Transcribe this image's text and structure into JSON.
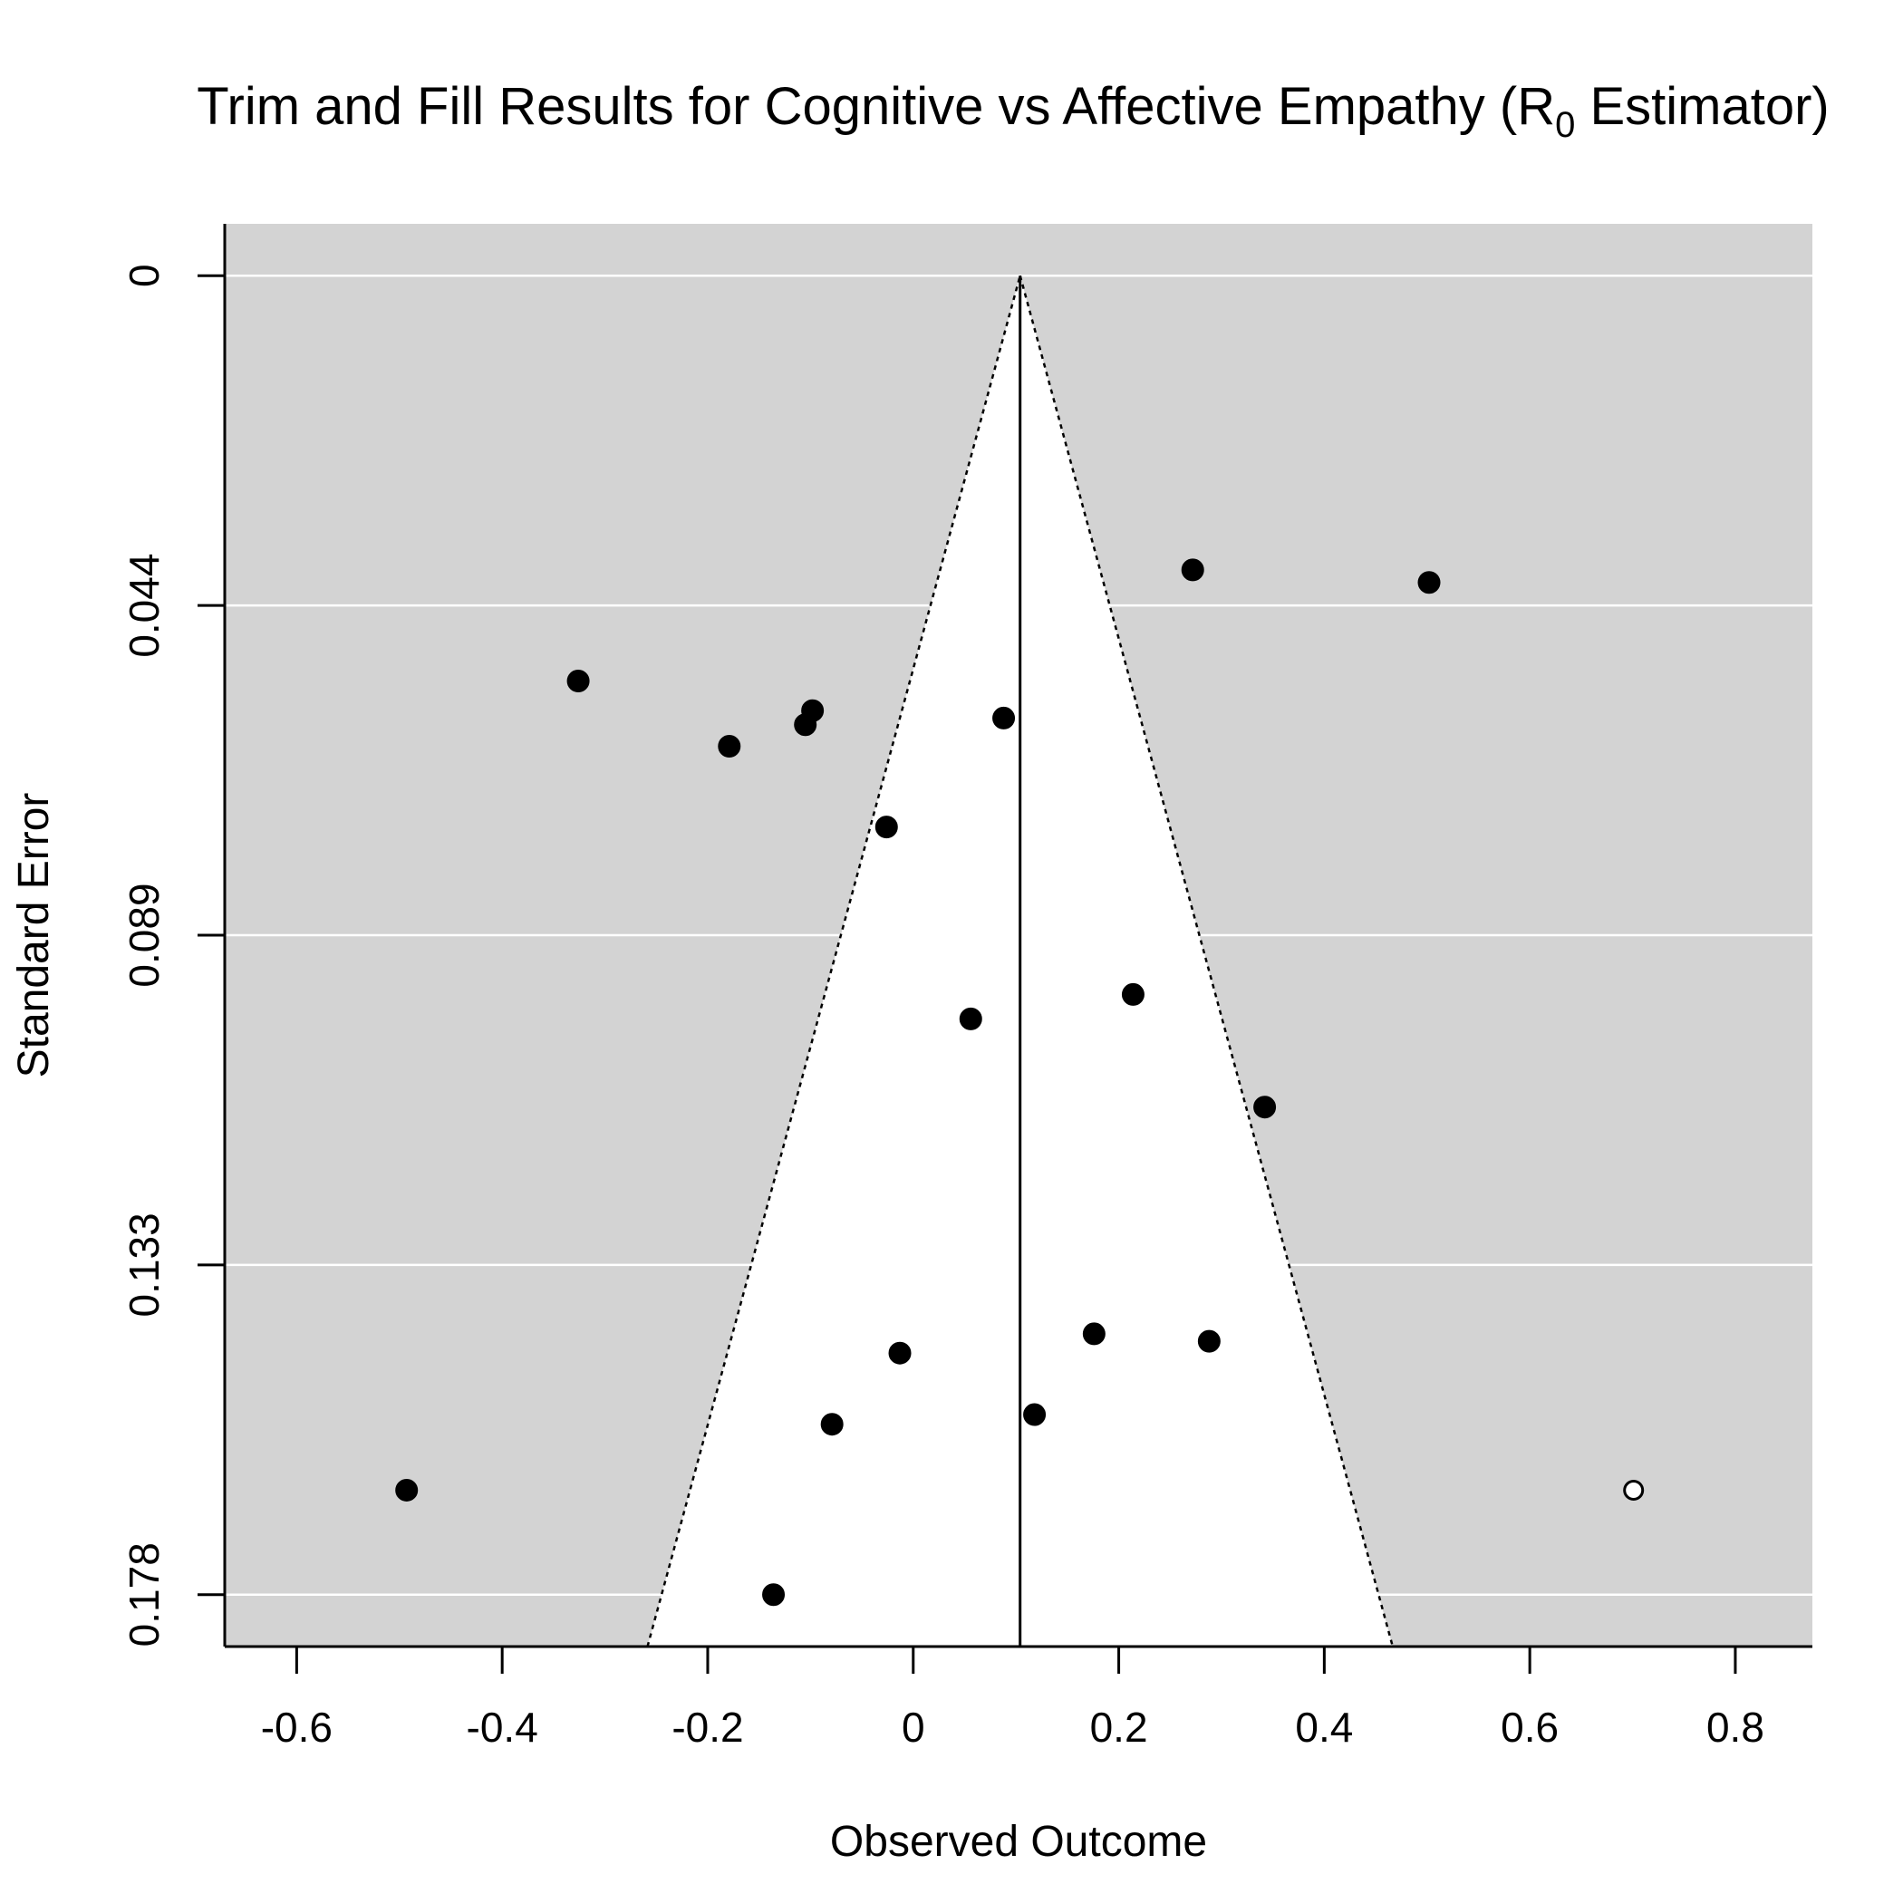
{
  "chart_data": {
    "type": "scatter",
    "title_main": "Trim and Fill Results for Cognitive vs Affective Empathy (R",
    "title_sub": "0",
    "title_end": " Estimator)",
    "xlabel": "Observed Outcome",
    "ylabel": "Standard Error",
    "xlim": [
      -0.67,
      0.875
    ],
    "ylim": [
      0.185,
      -0.007
    ],
    "x_ticks": [
      -0.6,
      -0.4,
      -0.2,
      0,
      0.2,
      0.4,
      0.6,
      0.8
    ],
    "x_tick_labels": [
      "-0.6",
      "-0.4",
      "-0.2",
      "0",
      "0.2",
      "0.4",
      "0.6",
      "0.8"
    ],
    "y_ticks": [
      0,
      0.0445,
      0.089,
      0.1335,
      0.178
    ],
    "y_tick_labels": [
      "0",
      "0.044",
      "0.089",
      "0.133",
      "0.178"
    ],
    "summary_estimate": 0.104,
    "funnel_z": 1.96,
    "grid": "horizontal",
    "colors": {
      "panel_background": "#d3d3d3",
      "funnel_region": "#ffffff",
      "gridline": "#ffffff",
      "point_fill": "#000000",
      "filled_point_fill": "#ffffff",
      "axis": "#000000"
    },
    "series": [
      {
        "marker": "filled",
        "x": [
          0.272,
          0.502,
          -0.326,
          -0.098,
          -0.105,
          -0.179,
          0.088,
          -0.026,
          0.214,
          0.056,
          0.342,
          0.176,
          0.288,
          -0.013,
          0.118,
          -0.079,
          -0.493,
          -0.136
        ],
        "y": [
          0.0397,
          0.0414,
          0.0547,
          0.0587,
          0.0606,
          0.0635,
          0.0597,
          0.0744,
          0.097,
          0.1003,
          0.1122,
          0.1428,
          0.1438,
          0.1454,
          0.1537,
          0.155,
          0.1639,
          0.178
        ]
      },
      {
        "marker": "open",
        "x": [
          0.701
        ],
        "y": [
          0.1639
        ]
      }
    ]
  }
}
